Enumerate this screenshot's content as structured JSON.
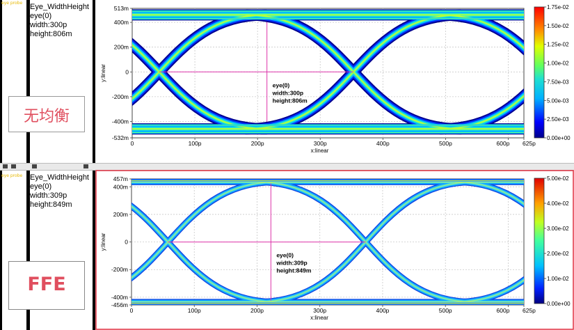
{
  "panels": [
    {
      "mini_label": "eye probe",
      "info_title": "Eye_WidthHeight",
      "info_eye": "eye(0)",
      "info_width": "width:300p",
      "info_height": "height:806m",
      "note_label": "无均衡",
      "y_axis_label": "y:linear",
      "x_axis_label": "x:linear",
      "y_ticks": [
        {
          "value": 513,
          "label": "513m"
        },
        {
          "value": 400,
          "label": "400m"
        },
        {
          "value": 200,
          "label": "200m"
        },
        {
          "value": 0,
          "label": "0"
        },
        {
          "value": -200,
          "label": "-200m"
        },
        {
          "value": -400,
          "label": "-400m"
        },
        {
          "value": -532,
          "label": "-532m"
        }
      ],
      "colorbar_ticks": [
        "1.75e-02",
        "1.50e-02",
        "1.25e-02",
        "1.00e-02",
        "7.50e-03",
        "5.00e-03",
        "2.50e-03",
        "0.00e+00"
      ],
      "annotation": [
        "eye(0)",
        "width:300p",
        "height:806m"
      ]
    },
    {
      "mini_label": "eye probe",
      "info_title": "Eye_WidthHeight",
      "info_eye": "eye(0)",
      "info_width": "width:309p",
      "info_height": "height:849m",
      "note_label": "FFE",
      "y_axis_label": "y:linear",
      "x_axis_label": "x:linear",
      "y_ticks": [
        {
          "value": 457,
          "label": "457m"
        },
        {
          "value": 400,
          "label": "400m"
        },
        {
          "value": 200,
          "label": "200m"
        },
        {
          "value": 0,
          "label": "0"
        },
        {
          "value": -200,
          "label": "-200m"
        },
        {
          "value": -400,
          "label": "-400m"
        },
        {
          "value": -456,
          "label": "-456m"
        }
      ],
      "colorbar_ticks": [
        "5.00e-02",
        "4.00e-02",
        "3.00e-02",
        "2.00e-02",
        "1.00e-02",
        "0.00e+00"
      ],
      "annotation": [
        "eye(0)",
        "width:309p",
        "height:849m"
      ]
    }
  ],
  "colors": {
    "crosshair": "#dd33aa",
    "panel2_border": "#e03040",
    "note_text": "#e04f5f"
  },
  "chart_data": [
    {
      "type": "heatmap",
      "title": "",
      "xlabel": "x:linear",
      "ylabel": "y:linear",
      "xlim": [
        0,
        625
      ],
      "ylim": [
        -532,
        513
      ],
      "x_unit": "ps",
      "y_unit": "mV",
      "x_ticks": [
        "0",
        "100p",
        "200p",
        "300p",
        "400p",
        "500p",
        "600p",
        "625p"
      ],
      "y_ticks": [
        "513m",
        "400m",
        "200m",
        "0",
        "-200m",
        "-400m",
        "-532m"
      ],
      "eye_crossings_x": [
        43,
        353
      ],
      "eye_center_x": 215,
      "eye_width_ps": 300,
      "eye_height_mV": 806,
      "rail_high_mV": [
        430,
        490
      ],
      "rail_low_mV": [
        -430,
        -490
      ],
      "colorbar_range": [
        0,
        0.0175
      ],
      "grid": true
    },
    {
      "type": "heatmap",
      "title": "",
      "xlabel": "x:linear",
      "ylabel": "y:linear",
      "xlim": [
        0,
        625
      ],
      "ylim": [
        -456,
        457
      ],
      "x_unit": "ps",
      "y_unit": "mV",
      "x_ticks": [
        "0",
        "100p",
        "200p",
        "300p",
        "400p",
        "500p",
        "600p",
        "625p"
      ],
      "y_ticks": [
        "457m",
        "400m",
        "200m",
        "0",
        "-200m",
        "-400m",
        "-456m"
      ],
      "eye_crossings_x": [
        58,
        373
      ],
      "eye_center_x": 222,
      "eye_width_ps": 309,
      "eye_height_mV": 849,
      "rail_high_mV": [
        425,
        445
      ],
      "rail_low_mV": [
        -425,
        -445
      ],
      "colorbar_range": [
        0,
        0.05
      ],
      "grid": true
    }
  ]
}
